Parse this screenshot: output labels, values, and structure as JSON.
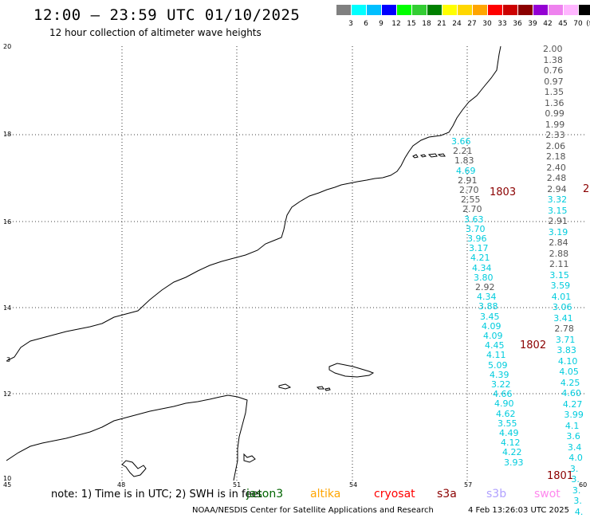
{
  "title": "12:00 – 23:59 UTC 01/10/2025",
  "subtitle": "12 hour collection of altimeter wave heights",
  "legend": {
    "unit": "(ft)",
    "colors": [
      "#808080",
      "#00ffff",
      "#00bfff",
      "#0000ff",
      "#00ff00",
      "#32cd32",
      "#008000",
      "#ffff00",
      "#ffd700",
      "#ffa500",
      "#ff0000",
      "#cc0000",
      "#8b0000",
      "#9400d3",
      "#ee82ee",
      "#ffb6ff",
      "#000000"
    ],
    "labels": [
      "3",
      "6",
      "9",
      "12",
      "15",
      "18",
      "21",
      "24",
      "27",
      "30",
      "33",
      "36",
      "39",
      "42",
      "45",
      "70"
    ]
  },
  "axes": {
    "lat_labels": [
      "20",
      "18",
      "16",
      "14",
      "12",
      "10"
    ],
    "lon_labels": [
      "45",
      "48",
      "51",
      "54",
      "57",
      "60"
    ],
    "left_edge_label": "3"
  },
  "tracks": {
    "gray_a": [
      "2.00",
      "1.38",
      "0.76",
      "0.97",
      "1.35",
      "1.36",
      "0.99",
      "1.99",
      "2.33",
      "2.06",
      "2.18",
      "2.40",
      "2.48",
      "2.94"
    ],
    "cyan_a": [
      "3.32",
      "3.15"
    ],
    "gray_b": [
      "2.91"
    ],
    "cyan_b": [
      "3.19"
    ],
    "gray_c": [
      "2.84",
      "2.88",
      "2.11"
    ],
    "cyan_c": [
      "3.15",
      "3.59",
      "4.01",
      "3.06",
      "3.41"
    ],
    "gray_d": [
      "2.78"
    ],
    "cyan_d": [
      "3.71",
      "3.83",
      "4.10",
      "4.05",
      "4.25",
      "4.60",
      "4.27",
      "3.99",
      "4.1",
      "3.6",
      "3.4",
      "4.0",
      "3.",
      "3.",
      "3.",
      "3.",
      "4."
    ],
    "mid_a": [
      {
        "v": "3.66",
        "c": "cyan"
      },
      {
        "v": "2.21",
        "c": "gray"
      },
      {
        "v": "1.83",
        "c": "gray"
      },
      {
        "v": "4.69",
        "c": "cyan"
      },
      {
        "v": "2.91",
        "c": "gray"
      },
      {
        "v": "2.70",
        "c": "gray"
      },
      {
        "v": "2.55",
        "c": "gray"
      },
      {
        "v": "2.70",
        "c": "gray"
      },
      {
        "v": "3.63",
        "c": "cyan"
      },
      {
        "v": "3.70",
        "c": "cyan"
      },
      {
        "v": "3.96",
        "c": "cyan"
      },
      {
        "v": "3.17",
        "c": "cyan"
      },
      {
        "v": "4.21",
        "c": "cyan"
      },
      {
        "v": "4.34",
        "c": "cyan"
      },
      {
        "v": "3.80",
        "c": "cyan"
      },
      {
        "v": "2.92",
        "c": "gray"
      },
      {
        "v": "4.34",
        "c": "cyan"
      },
      {
        "v": "3.88",
        "c": "cyan"
      },
      {
        "v": "3.45",
        "c": "cyan"
      },
      {
        "v": "4.09",
        "c": "cyan"
      },
      {
        "v": "4.09",
        "c": "cyan"
      },
      {
        "v": "4.45",
        "c": "cyan"
      },
      {
        "v": "4.11",
        "c": "cyan"
      },
      {
        "v": "5.09",
        "c": "cyan"
      },
      {
        "v": "4.39",
        "c": "cyan"
      },
      {
        "v": "3.22",
        "c": "cyan"
      },
      {
        "v": "4.66",
        "c": "cyan"
      },
      {
        "v": "4.90",
        "c": "cyan"
      },
      {
        "v": "4.62",
        "c": "cyan"
      },
      {
        "v": "3.55",
        "c": "cyan"
      },
      {
        "v": "4.49",
        "c": "cyan"
      },
      {
        "v": "4.12",
        "c": "cyan"
      },
      {
        "v": "4.22",
        "c": "cyan"
      },
      {
        "v": "3.93",
        "c": "cyan"
      }
    ]
  },
  "revolutions": [
    "1803",
    "1802",
    "1801",
    "2"
  ],
  "note": "note: 1) Time is in UTC; 2) SWH is in feet",
  "satellites": [
    {
      "name": "jason3",
      "color": "#006400"
    },
    {
      "name": "altika",
      "color": "#ffa500"
    },
    {
      "name": "cryosat",
      "color": "#ff0000"
    },
    {
      "name": "s3a",
      "color": "#8b0000"
    },
    {
      "name": "s3b",
      "color": "#b0a0ff"
    },
    {
      "name": "swot",
      "color": "#ff88ee"
    }
  ],
  "footer": {
    "center": "NOAA/NESDIS Center for Satellite Applications and Research",
    "timestamp": "4 Feb 13:26:03 UTC 2025"
  }
}
